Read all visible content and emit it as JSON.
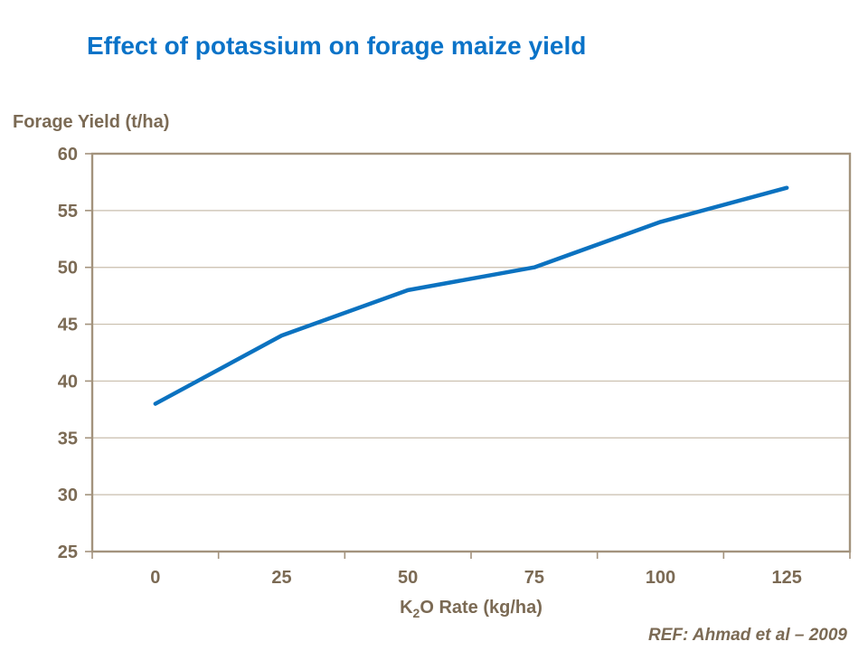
{
  "title": {
    "text": "Effect of potassium on forage maize yield",
    "color": "#0a73c8"
  },
  "y_axis_title": "Forage Yield (t/ha)",
  "x_axis_title": {
    "main": "K",
    "sub": "2",
    "rest": "O Rate (kg/ha)"
  },
  "ref": {
    "text": "REF:  Ahmad et al – 2009"
  },
  "chart_data": {
    "type": "line",
    "x": [
      0,
      25,
      50,
      75,
      100,
      125
    ],
    "series": [
      {
        "name": "Forage yield",
        "values": [
          38,
          44,
          48,
          50,
          54,
          57
        ]
      }
    ],
    "title": "Effect of potassium on forage maize yield",
    "xlabel": "K2O Rate (kg/ha)",
    "ylabel": "Forage Yield (t/ha)",
    "ylim": [
      25,
      60
    ],
    "ytick_step": 5,
    "yticks": [
      25,
      30,
      35,
      40,
      45,
      50,
      55,
      60
    ],
    "xticks": [
      0,
      25,
      50,
      75,
      100,
      125
    ],
    "grid": "horizontal",
    "legend": "none",
    "line_color": "#0b72c0",
    "frame_color": "#a3937d",
    "grid_color": "#c9bead",
    "text_color": "#7b6a54"
  }
}
